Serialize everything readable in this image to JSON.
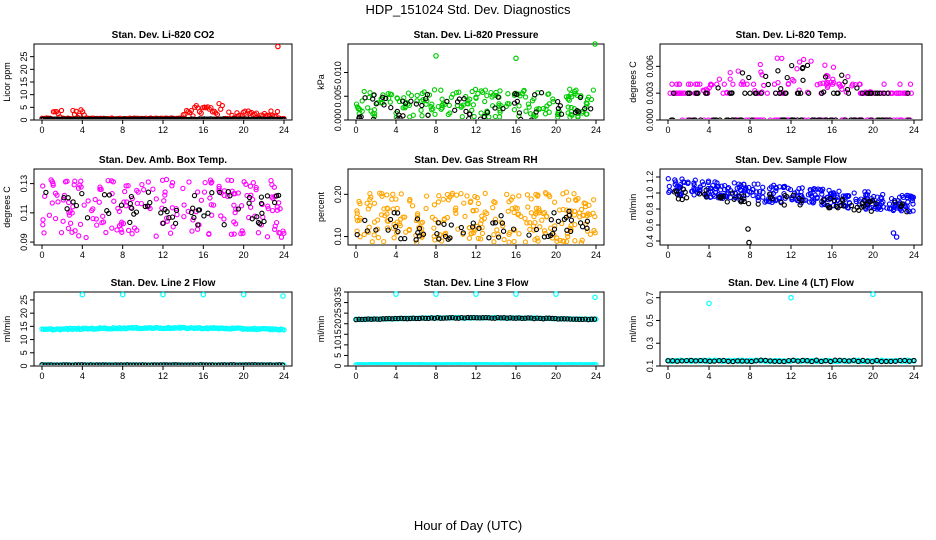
{
  "title": "HDP_151024  Std. Dev. Diagnostics",
  "x_caption": "Hour of Day (UTC)",
  "chart_data": [
    {
      "type": "scatter",
      "title": "Stan. Dev. Li-820 CO2",
      "ylabel": "Licor ppm",
      "xlim": [
        0,
        24
      ],
      "ylim": [
        0,
        30
      ],
      "xticks": [
        "0",
        "4",
        "8",
        "12",
        "16",
        "20",
        "24"
      ],
      "yticks": [
        {
          "v": 0,
          "label": "0"
        },
        {
          "v": 5,
          "label": "5"
        },
        {
          "v": 10,
          "label": "10"
        },
        {
          "v": 15,
          "label": "15"
        },
        {
          "v": 20,
          "label": "20"
        },
        {
          "v": 25,
          "label": "25"
        }
      ],
      "series": [
        {
          "color": "#ff0000",
          "model": "red_co2",
          "y": [],
          "x": []
        },
        {
          "color": "#000000",
          "model": "flat",
          "base": 0.3,
          "spread": 0.25
        }
      ],
      "outliers": [
        {
          "x": 23.4,
          "y": 29.0,
          "color": "#ff0000"
        }
      ]
    },
    {
      "type": "scatter",
      "title": "Stan. Dev. Li-820 Pressure",
      "ylabel": "kPa",
      "xlim": [
        0,
        24
      ],
      "ylim": [
        0,
        0.016
      ],
      "xticks": [
        "0",
        "4",
        "8",
        "12",
        "16",
        "20",
        "24"
      ],
      "yticks": [
        {
          "v": 0,
          "label": "0.000"
        },
        {
          "v": 0.005,
          "label": "0.005"
        },
        {
          "v": 0.01,
          "label": "0.010"
        }
      ],
      "series": [
        {
          "color": "#00cc00",
          "model": "band",
          "base": 0.0035,
          "spread": 0.003
        },
        {
          "color": "#000000",
          "model": "band",
          "base": 0.003,
          "spread": 0.003,
          "sparse": true
        }
      ],
      "outliers": [
        {
          "x": 8.0,
          "y": 0.0135,
          "color": "#00cc00"
        },
        {
          "x": 16.0,
          "y": 0.013,
          "color": "#00cc00"
        },
        {
          "x": 23.9,
          "y": 0.016,
          "color": "#00cc00"
        }
      ]
    },
    {
      "type": "scatter",
      "title": "Stan. Dev. Li-820 Temp.",
      "ylabel": "degrees C",
      "xlim": [
        0,
        24
      ],
      "ylim": [
        0,
        0.0085
      ],
      "xticks": [
        "0",
        "4",
        "8",
        "12",
        "16",
        "20",
        "24"
      ],
      "yticks": [
        {
          "v": 0,
          "label": "0.000"
        },
        {
          "v": 0.003,
          "label": "0.003"
        },
        {
          "v": 0.006,
          "label": "0.006"
        }
      ],
      "series": [
        {
          "color": "#ff00ff",
          "model": "temp_hump"
        },
        {
          "color": "#000000",
          "model": "temp_black"
        }
      ],
      "outliers": []
    },
    {
      "type": "scatter",
      "title": "Stan. Dev. Amb. Box Temp.",
      "ylabel": "degrees C",
      "xlim": [
        0,
        24
      ],
      "ylim": [
        0.088,
        0.14
      ],
      "xticks": [
        "0",
        "4",
        "8",
        "12",
        "16",
        "20",
        "24"
      ],
      "yticks": [
        {
          "v": 0.09,
          "label": "0.09"
        },
        {
          "v": 0.11,
          "label": "0.11"
        },
        {
          "v": 0.13,
          "label": "0.13"
        }
      ],
      "series": [
        {
          "color": "#ff00ff",
          "model": "band",
          "base": 0.113,
          "spread": 0.02
        },
        {
          "color": "#000000",
          "model": "band",
          "base": 0.113,
          "spread": 0.012,
          "sparse": true
        }
      ],
      "outliers": []
    },
    {
      "type": "scatter",
      "title": "Stan. Dev. Gas Stream RH",
      "ylabel": "percent",
      "xlim": [
        0,
        24
      ],
      "ylim": [
        0.08,
        0.26
      ],
      "xticks": [
        "0",
        "4",
        "8",
        "12",
        "16",
        "20",
        "24"
      ],
      "yticks": [
        {
          "v": 0.1,
          "label": "0.10"
        },
        {
          "v": 0.2,
          "label": "0.20"
        }
      ],
      "series": [
        {
          "color": "#ffa500",
          "model": "band",
          "base": 0.145,
          "spread": 0.06,
          "dense": true
        },
        {
          "color": "#000000",
          "model": "band",
          "base": 0.125,
          "spread": 0.035,
          "sparse": true
        }
      ],
      "outliers": []
    },
    {
      "type": "scatter",
      "title": "Stan. Dev. Sample Flow",
      "ylabel": "ml/min",
      "xlim": [
        0,
        24
      ],
      "ylim": [
        0.35,
        1.3
      ],
      "xticks": [
        "0",
        "4",
        "8",
        "12",
        "16",
        "20",
        "24"
      ],
      "yticks": [
        {
          "v": 0.4,
          "label": "0.4"
        },
        {
          "v": 0.6,
          "label": "0.6"
        },
        {
          "v": 0.8,
          "label": "0.8"
        },
        {
          "v": 1.0,
          "label": "1.0"
        },
        {
          "v": 1.2,
          "label": "1.2"
        }
      ],
      "series": [
        {
          "color": "#0000ff",
          "model": "flow_decline"
        },
        {
          "color": "#000000",
          "model": "flow_black"
        }
      ],
      "outliers": [
        {
          "x": 7.9,
          "y": 0.38,
          "color": "#000000"
        },
        {
          "x": 7.8,
          "y": 0.55,
          "color": "#000000"
        },
        {
          "x": 22.3,
          "y": 0.45,
          "color": "#0000ff"
        },
        {
          "x": 22.0,
          "y": 0.5,
          "color": "#0000ff"
        }
      ]
    },
    {
      "type": "scatter",
      "title": "Stan. Dev. Line 2 Flow",
      "ylabel": "ml/min",
      "xlim": [
        0,
        24
      ],
      "ylim": [
        0,
        28
      ],
      "xticks": [
        "0",
        "4",
        "8",
        "12",
        "16",
        "20",
        "24"
      ],
      "yticks": [
        {
          "v": 0,
          "label": "0"
        },
        {
          "v": 5,
          "label": "5"
        },
        {
          "v": 10,
          "label": "10"
        },
        {
          "v": 15,
          "label": "15"
        },
        {
          "v": 20,
          "label": "20"
        },
        {
          "v": 25,
          "label": "25"
        }
      ],
      "series": [
        {
          "color": "#00ffff",
          "model": "line",
          "base": 13.8,
          "spread": 0.5,
          "bow": 0.6
        },
        {
          "color": "#00ffff",
          "model": "line",
          "base": 0.4,
          "spread": 0.1
        },
        {
          "color": "#000000",
          "model": "line",
          "base": 0.4,
          "spread": 0.1,
          "every": 2
        }
      ],
      "outliers": [
        {
          "x": 4.0,
          "y": 27.0,
          "color": "#00ffff"
        },
        {
          "x": 8.0,
          "y": 27.0,
          "color": "#00ffff"
        },
        {
          "x": 12.0,
          "y": 27.0,
          "color": "#00ffff"
        },
        {
          "x": 16.0,
          "y": 27.0,
          "color": "#00ffff"
        },
        {
          "x": 20.0,
          "y": 27.0,
          "color": "#00ffff"
        },
        {
          "x": 23.9,
          "y": 26.5,
          "color": "#00ffff"
        }
      ]
    },
    {
      "type": "scatter",
      "title": "Stan. Dev. Line 3 Flow",
      "ylabel": "ml/min",
      "xlim": [
        0,
        24
      ],
      "ylim": [
        0,
        35
      ],
      "xticks": [
        "0",
        "4",
        "8",
        "12",
        "16",
        "20",
        "24"
      ],
      "yticks": [
        {
          "v": 0,
          "label": "0"
        },
        {
          "v": 5,
          "label": "5"
        },
        {
          "v": 10,
          "label": "10"
        },
        {
          "v": 15,
          "label": "15"
        },
        {
          "v": 20,
          "label": "20"
        },
        {
          "v": 25,
          "label": "25"
        },
        {
          "v": 30,
          "label": "30"
        },
        {
          "v": 35,
          "label": "35"
        }
      ],
      "series": [
        {
          "color": "#00ffff",
          "model": "line",
          "base": 22.0,
          "spread": 0.3,
          "bow": 0.8
        },
        {
          "color": "#000000",
          "model": "line",
          "base": 22.0,
          "spread": 0.3,
          "bow": 0.8,
          "every": 2
        },
        {
          "color": "#00ffff",
          "model": "line",
          "base": 0.6,
          "spread": 0.15
        }
      ],
      "outliers": [
        {
          "x": 4.0,
          "y": 34.0,
          "color": "#00ffff"
        },
        {
          "x": 8.0,
          "y": 34.0,
          "color": "#00ffff"
        },
        {
          "x": 12.0,
          "y": 34.0,
          "color": "#00ffff"
        },
        {
          "x": 16.0,
          "y": 34.0,
          "color": "#00ffff"
        },
        {
          "x": 20.0,
          "y": 34.0,
          "color": "#00ffff"
        },
        {
          "x": 23.9,
          "y": 32.5,
          "color": "#00ffff"
        }
      ]
    },
    {
      "type": "scatter",
      "title": "Stan. Dev. Line 4 (LT) Flow",
      "ylabel": "ml/min",
      "xlim": [
        0,
        24
      ],
      "ylim": [
        0.1,
        0.75
      ],
      "xticks": [
        "0",
        "4",
        "8",
        "12",
        "16",
        "20",
        "24"
      ],
      "yticks": [
        {
          "v": 0.1,
          "label": "0.1"
        },
        {
          "v": 0.3,
          "label": "0.3"
        },
        {
          "v": 0.5,
          "label": "0.5"
        },
        {
          "v": 0.7,
          "label": "0.7"
        }
      ],
      "series": [
        {
          "color": "#00ffff",
          "model": "line",
          "base": 0.145,
          "spread": 0.012
        },
        {
          "color": "#000000",
          "model": "line",
          "base": 0.145,
          "spread": 0.012,
          "every": 3
        }
      ],
      "outliers": [
        {
          "x": 4.0,
          "y": 0.65,
          "color": "#00ffff"
        },
        {
          "x": 12.0,
          "y": 0.7,
          "color": "#00ffff"
        },
        {
          "x": 20.0,
          "y": 0.73,
          "color": "#00ffff"
        }
      ]
    }
  ]
}
